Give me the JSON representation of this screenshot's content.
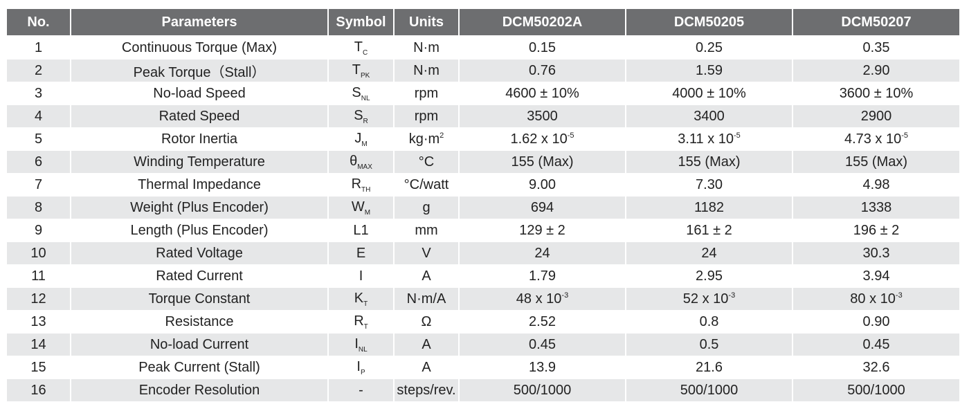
{
  "header": {
    "no": "No.",
    "parameters": "Parameters",
    "symbol": "Symbol",
    "units": "Units",
    "models": [
      "DCM50202A",
      "DCM50205",
      "DCM50207"
    ]
  },
  "rows": [
    {
      "no": "1",
      "param": "Continuous Torque (Max)",
      "sym": "T",
      "sym_sub": "C",
      "unit": "N·m",
      "unit_sup": "",
      "v": [
        {
          "t": "0.15",
          "sup": ""
        },
        {
          "t": "0.25",
          "sup": ""
        },
        {
          "t": "0.35",
          "sup": ""
        }
      ]
    },
    {
      "no": "2",
      "param": "Peak Torque（Stall）",
      "sym": "T",
      "sym_sub": "PK",
      "unit": "N·m",
      "unit_sup": "",
      "v": [
        {
          "t": "0.76",
          "sup": ""
        },
        {
          "t": "1.59",
          "sup": ""
        },
        {
          "t": "2.90",
          "sup": ""
        }
      ]
    },
    {
      "no": "3",
      "param": "No-load Speed",
      "sym": "S",
      "sym_sub": "NL",
      "unit": "rpm",
      "unit_sup": "",
      "v": [
        {
          "t": "4600 ± 10%",
          "sup": ""
        },
        {
          "t": "4000 ± 10%",
          "sup": ""
        },
        {
          "t": "3600 ± 10%",
          "sup": ""
        }
      ]
    },
    {
      "no": "4",
      "param": "Rated Speed",
      "sym": "S",
      "sym_sub": "R",
      "unit": "rpm",
      "unit_sup": "",
      "v": [
        {
          "t": "3500",
          "sup": ""
        },
        {
          "t": "3400",
          "sup": ""
        },
        {
          "t": "2900",
          "sup": ""
        }
      ]
    },
    {
      "no": "5",
      "param": "Rotor Inertia",
      "sym": "J",
      "sym_sub": "M",
      "unit": "kg·m",
      "unit_sup": "2",
      "v": [
        {
          "t": "1.62 x 10",
          "sup": "-5"
        },
        {
          "t": "3.11 x 10",
          "sup": "-5"
        },
        {
          "t": "4.73 x 10",
          "sup": "-5"
        }
      ]
    },
    {
      "no": "6",
      "param": "Winding Temperature",
      "sym": "θ",
      "sym_sub": "MAX",
      "unit": "°C",
      "unit_sup": "",
      "v": [
        {
          "t": "155 (Max)",
          "sup": ""
        },
        {
          "t": "155 (Max)",
          "sup": ""
        },
        {
          "t": "155 (Max)",
          "sup": ""
        }
      ]
    },
    {
      "no": "7",
      "param": "Thermal Impedance",
      "sym": "R",
      "sym_sub": "TH",
      "unit": "°C/watt",
      "unit_sup": "",
      "v": [
        {
          "t": "9.00",
          "sup": ""
        },
        {
          "t": "7.30",
          "sup": ""
        },
        {
          "t": "4.98",
          "sup": ""
        }
      ]
    },
    {
      "no": "8",
      "param": "Weight (Plus Encoder)",
      "sym": "W",
      "sym_sub": "M",
      "unit": "g",
      "unit_sup": "",
      "v": [
        {
          "t": "694",
          "sup": ""
        },
        {
          "t": "1182",
          "sup": ""
        },
        {
          "t": "1338",
          "sup": ""
        }
      ]
    },
    {
      "no": "9",
      "param": "Length (Plus Encoder)",
      "sym": "L1",
      "sym_sub": "",
      "unit": "mm",
      "unit_sup": "",
      "v": [
        {
          "t": "129 ± 2",
          "sup": ""
        },
        {
          "t": "161 ± 2",
          "sup": ""
        },
        {
          "t": "196 ± 2",
          "sup": ""
        }
      ]
    },
    {
      "no": "10",
      "param": "Rated Voltage",
      "sym": "E",
      "sym_sub": "",
      "unit": "V",
      "unit_sup": "",
      "v": [
        {
          "t": "24",
          "sup": ""
        },
        {
          "t": "24",
          "sup": ""
        },
        {
          "t": "30.3",
          "sup": ""
        }
      ]
    },
    {
      "no": "11",
      "param": "Rated Current",
      "sym": "I",
      "sym_sub": "",
      "unit": "A",
      "unit_sup": "",
      "v": [
        {
          "t": "1.79",
          "sup": ""
        },
        {
          "t": "2.95",
          "sup": ""
        },
        {
          "t": "3.94",
          "sup": ""
        }
      ]
    },
    {
      "no": "12",
      "param": "Torque Constant",
      "sym": "K",
      "sym_sub": "T",
      "unit": "N·m/A",
      "unit_sup": "",
      "v": [
        {
          "t": "48 x 10",
          "sup": "-3"
        },
        {
          "t": "52 x 10",
          "sup": "-3"
        },
        {
          "t": "80 x 10",
          "sup": "-3"
        }
      ]
    },
    {
      "no": "13",
      "param": "Resistance",
      "sym": "R",
      "sym_sub": "T",
      "unit": "Ω",
      "unit_sup": "",
      "v": [
        {
          "t": "2.52",
          "sup": ""
        },
        {
          "t": "0.8",
          "sup": ""
        },
        {
          "t": "0.90",
          "sup": ""
        }
      ]
    },
    {
      "no": "14",
      "param": "No-load Current",
      "sym": "I",
      "sym_sub": "NL",
      "unit": "A",
      "unit_sup": "",
      "v": [
        {
          "t": "0.45",
          "sup": ""
        },
        {
          "t": "0.5",
          "sup": ""
        },
        {
          "t": "0.45",
          "sup": ""
        }
      ]
    },
    {
      "no": "15",
      "param": "Peak Current (Stall)",
      "sym": "I",
      "sym_sub": "P",
      "unit": "A",
      "unit_sup": "",
      "v": [
        {
          "t": "13.9",
          "sup": ""
        },
        {
          "t": "21.6",
          "sup": ""
        },
        {
          "t": "32.6",
          "sup": ""
        }
      ]
    },
    {
      "no": "16",
      "param": "Encoder Resolution",
      "sym": "-",
      "sym_sub": "",
      "unit": "steps/rev.",
      "unit_sup": "",
      "v": [
        {
          "t": "500/1000",
          "sup": ""
        },
        {
          "t": "500/1000",
          "sup": ""
        },
        {
          "t": "500/1000",
          "sup": ""
        }
      ]
    }
  ]
}
